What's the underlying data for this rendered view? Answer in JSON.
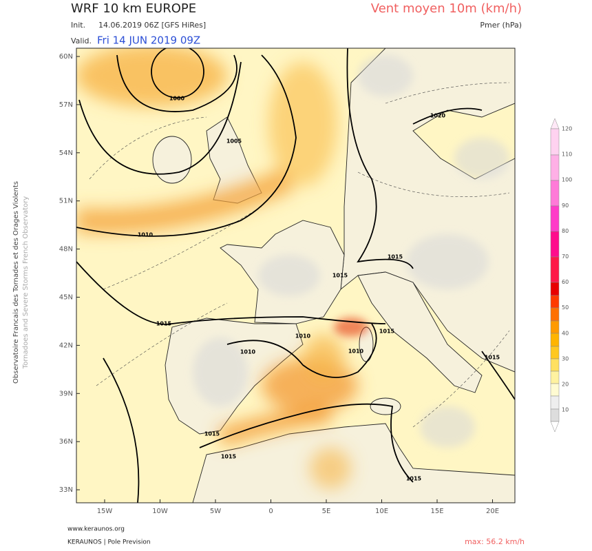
{
  "header": {
    "title": "WRF 10 km EUROPE",
    "init_label": "Init.",
    "init_value": "14.06.2019 06Z [GFS HiRes]",
    "valid_label": "Valid.",
    "valid_value": "Fri 14 JUN 2019 09Z",
    "field_title": "Vent moyen 10m (km/h)",
    "field_subtitle": "Pmer (hPa)"
  },
  "map": {
    "lat_labels": [
      "60N",
      "57N",
      "54N",
      "51N",
      "48N",
      "45N",
      "42N",
      "39N",
      "36N",
      "33N"
    ],
    "lon_labels": [
      "15W",
      "10W",
      "5W",
      "0",
      "5E",
      "10E",
      "15E",
      "20E"
    ],
    "isobar_labels": [
      "1000",
      "1005",
      "1010",
      "1015",
      "1010",
      "1010",
      "1010",
      "1015",
      "1015",
      "1015",
      "1015",
      "1015",
      "1015",
      "1015",
      "1020"
    ]
  },
  "colorbar": {
    "ticks": [
      120,
      110,
      100,
      90,
      80,
      70,
      60,
      50,
      40,
      30,
      20,
      10
    ]
  },
  "side": {
    "line1": "Observatoire Francais des Tornades et des Orages Violents",
    "line2": "Tornadoes and Severe Storms French Observatory"
  },
  "footer": {
    "site": "www.keraunos.org",
    "credit": "KERAUNOS | Pole Prevision",
    "max": "max: 56.2 km/h"
  }
}
